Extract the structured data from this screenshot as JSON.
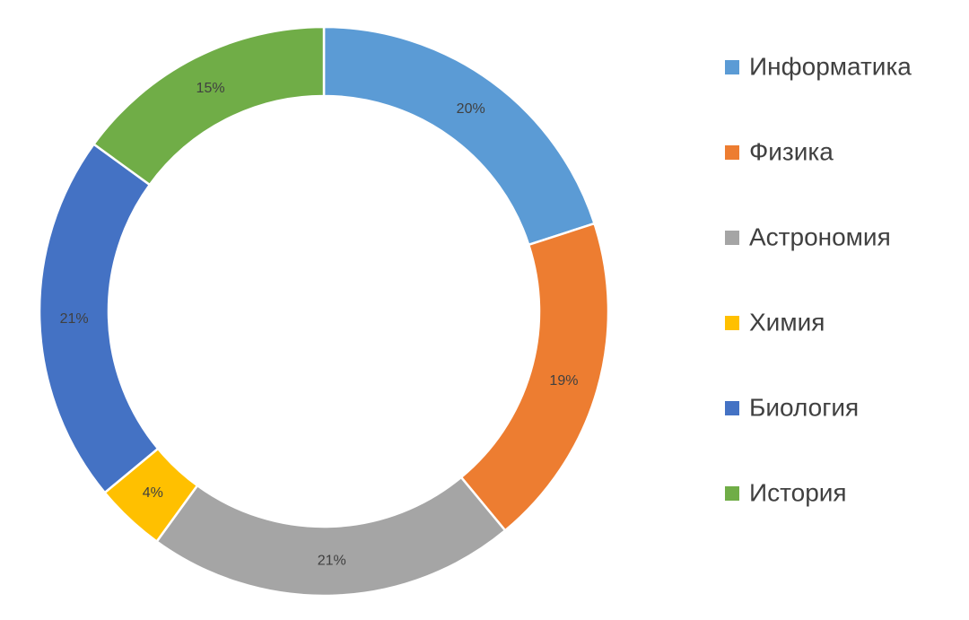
{
  "chart_data": {
    "type": "donut",
    "categories": [
      "Информатика",
      "Физика",
      "Астрономия",
      "Химия",
      "Биология",
      "История"
    ],
    "values": [
      20,
      19,
      21,
      4,
      21,
      15
    ],
    "value_labels": [
      "20%",
      "19%",
      "21%",
      "4%",
      "21%",
      "15%"
    ],
    "colors": [
      "#5b9bd5",
      "#ed7d31",
      "#a5a5a5",
      "#ffc000",
      "#4472c4",
      "#70ad47"
    ],
    "legend": "right"
  }
}
